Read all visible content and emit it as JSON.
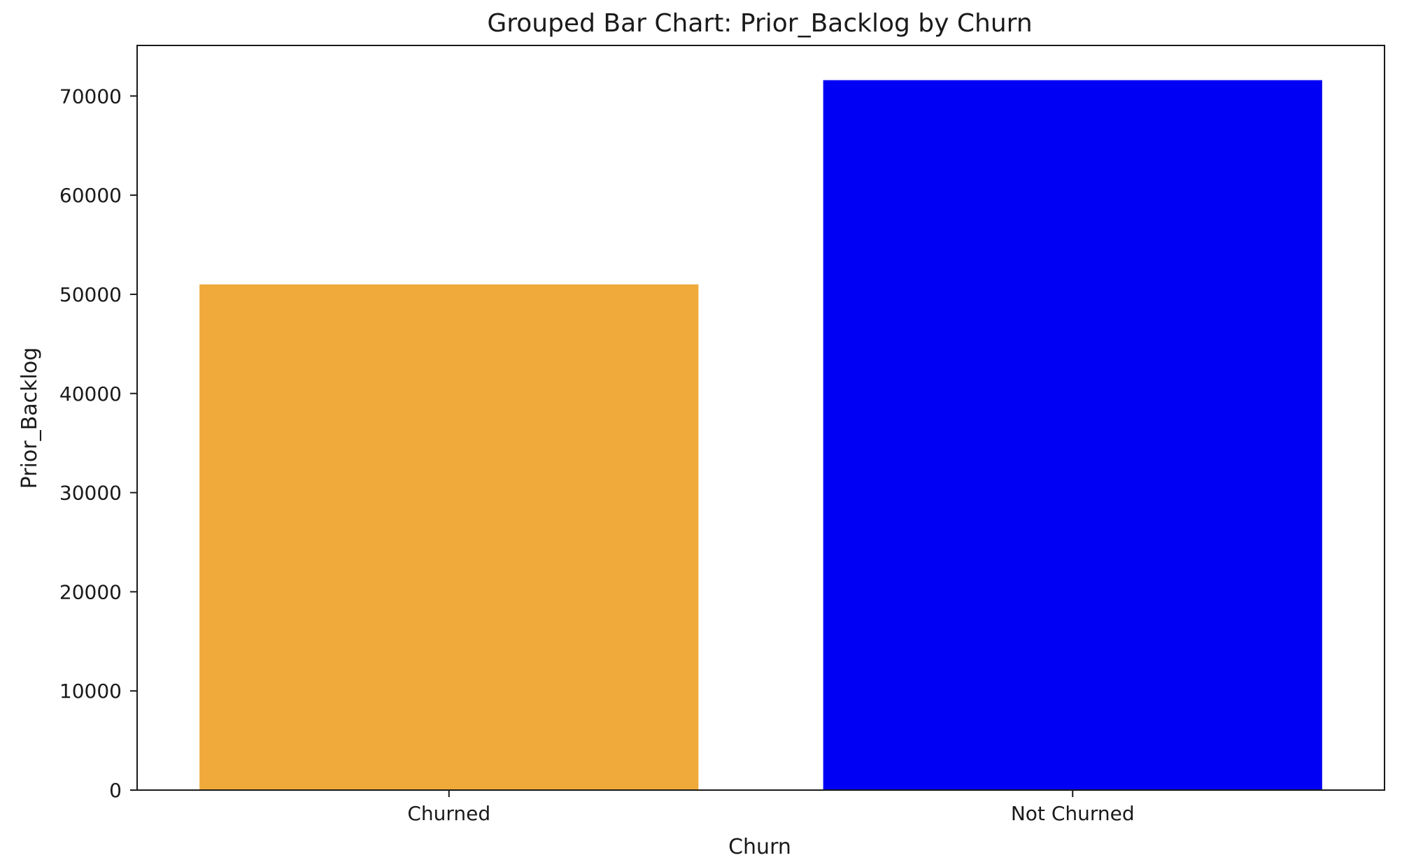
{
  "chart_data": {
    "type": "bar",
    "title": "Grouped Bar Chart: Prior_Backlog by Churn",
    "xlabel": "Churn",
    "ylabel": "Prior_Backlog",
    "categories": [
      "Churned",
      "Not Churned"
    ],
    "values": [
      51000,
      71600
    ],
    "colors": [
      "#f0a93b",
      "#0000f5"
    ],
    "ylim": [
      0,
      75100
    ],
    "yticks": [
      0,
      10000,
      20000,
      30000,
      40000,
      50000,
      60000,
      70000
    ],
    "ytick_labels": [
      "0",
      "10000",
      "20000",
      "30000",
      "40000",
      "50000",
      "60000",
      "70000"
    ],
    "grid": false,
    "legend": "none"
  }
}
